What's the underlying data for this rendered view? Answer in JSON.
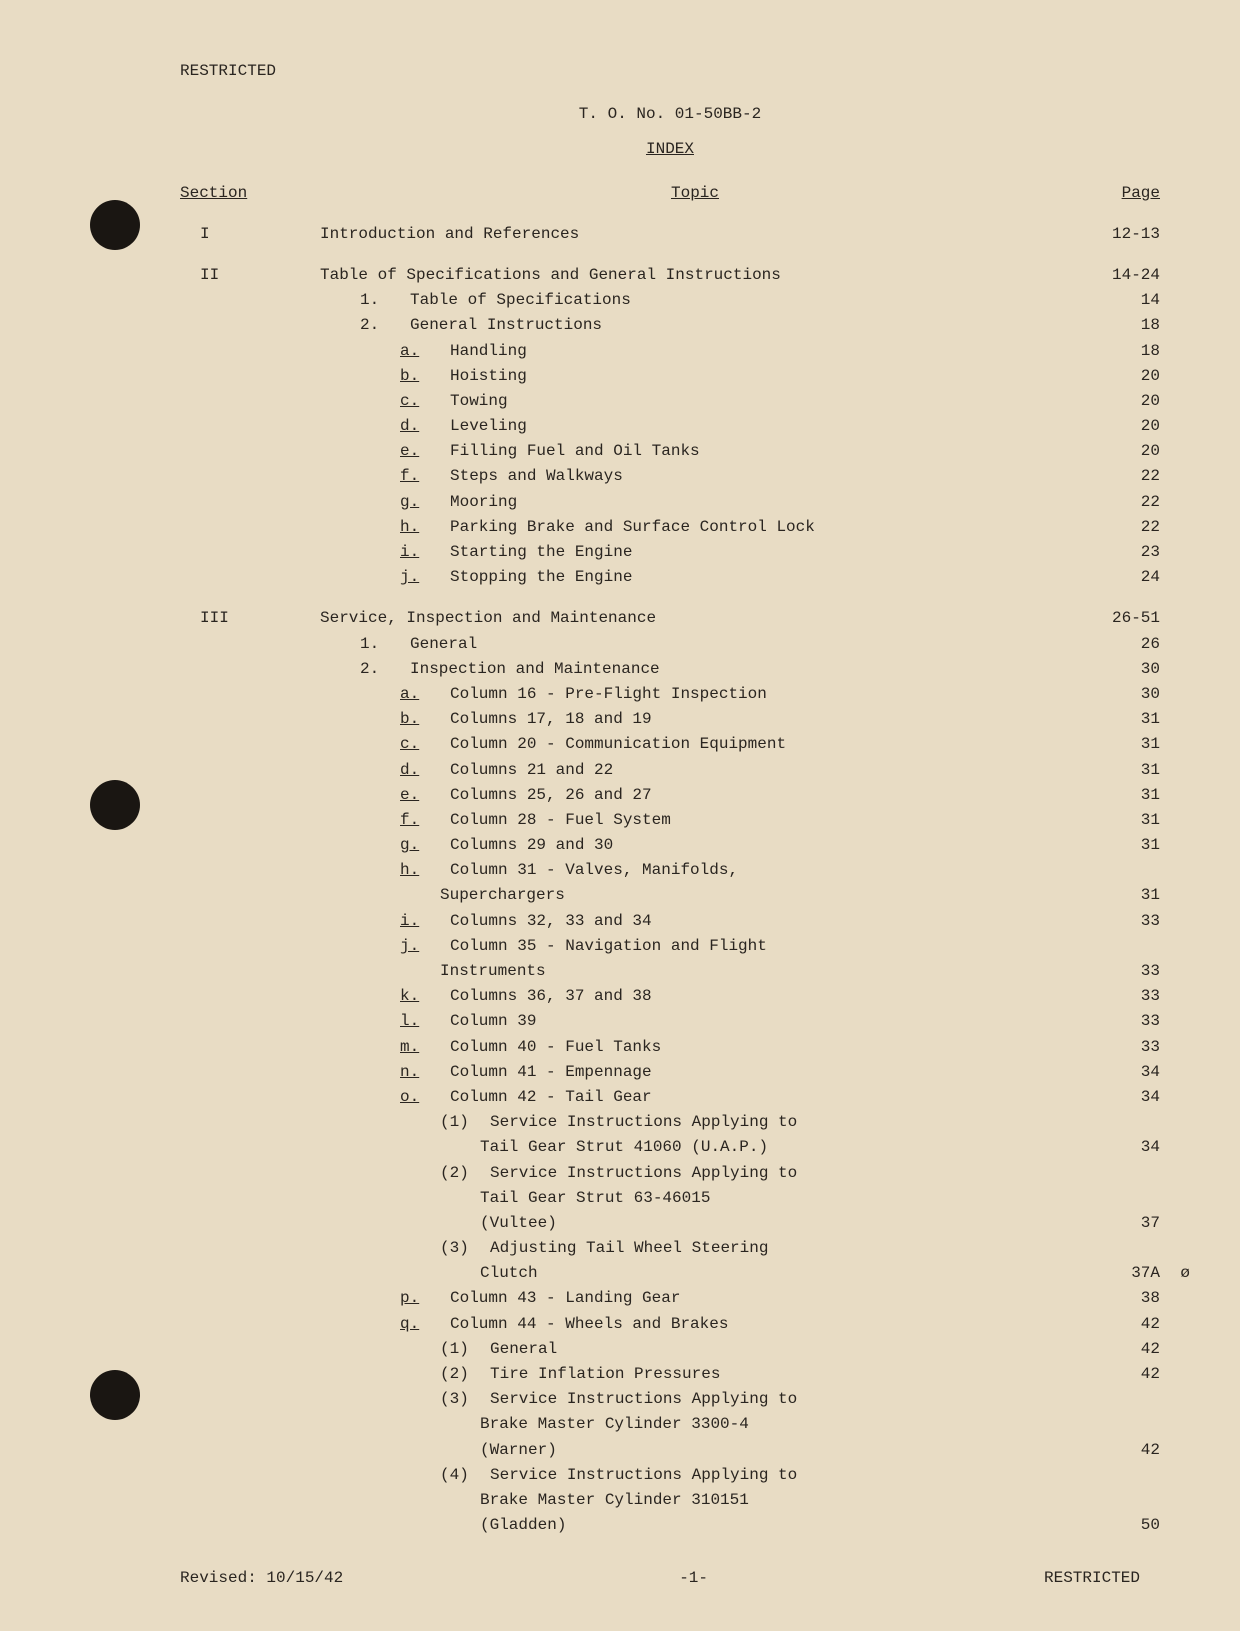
{
  "meta": {
    "background_color": "#e8dcc4",
    "text_color": "#2a2520",
    "font_family": "Courier New",
    "font_size": 16
  },
  "header": {
    "restricted": "RESTRICTED",
    "to_number": "T. O. No. 01-50BB-2",
    "index_title": "INDEX"
  },
  "columns": {
    "section": "Section",
    "topic": "Topic",
    "page": "Page"
  },
  "sections": [
    {
      "num": "I",
      "entries": [
        {
          "indent": 0,
          "label": "",
          "text": "Introduction and References",
          "page": "12-13"
        }
      ]
    },
    {
      "num": "II",
      "entries": [
        {
          "indent": 0,
          "label": "",
          "text": "Table of Specifications and General Instructions",
          "page": "14-24"
        },
        {
          "indent": 1,
          "label": "1.",
          "text": "Table of Specifications",
          "page": "14"
        },
        {
          "indent": 1,
          "label": "2.",
          "text": "General Instructions",
          "page": "18"
        },
        {
          "indent": 2,
          "label": "a.",
          "underline": true,
          "text": "Handling",
          "page": "18"
        },
        {
          "indent": 2,
          "label": "b.",
          "underline": true,
          "text": "Hoisting",
          "page": "20"
        },
        {
          "indent": 2,
          "label": "c.",
          "underline": true,
          "text": "Towing",
          "page": "20"
        },
        {
          "indent": 2,
          "label": "d.",
          "underline": true,
          "text": "Leveling",
          "page": "20"
        },
        {
          "indent": 2,
          "label": "e.",
          "underline": true,
          "text": "Filling Fuel and Oil Tanks",
          "page": "20"
        },
        {
          "indent": 2,
          "label": "f.",
          "underline": true,
          "text": "Steps and Walkways",
          "page": "22"
        },
        {
          "indent": 2,
          "label": "g.",
          "underline": true,
          "text": "Mooring",
          "page": "22"
        },
        {
          "indent": 2,
          "label": "h.",
          "underline": true,
          "text": "Parking Brake and Surface Control Lock",
          "page": "22"
        },
        {
          "indent": 2,
          "label": "i.",
          "underline": true,
          "text": "Starting the Engine",
          "page": "23"
        },
        {
          "indent": 2,
          "label": "j.",
          "underline": true,
          "text": "Stopping the Engine",
          "page": "24"
        }
      ]
    },
    {
      "num": "III",
      "entries": [
        {
          "indent": 0,
          "label": "",
          "text": "Service, Inspection and Maintenance",
          "page": "26-51"
        },
        {
          "indent": 1,
          "label": "1.",
          "text": "General",
          "page": "26"
        },
        {
          "indent": 1,
          "label": "2.",
          "text": "Inspection and Maintenance",
          "page": "30"
        },
        {
          "indent": 2,
          "label": "a.",
          "underline": true,
          "text": "Column 16 - Pre-Flight Inspection",
          "page": "30"
        },
        {
          "indent": 2,
          "label": "b.",
          "underline": true,
          "text": "Columns 17, 18 and 19",
          "page": "31"
        },
        {
          "indent": 2,
          "label": "c.",
          "underline": true,
          "text": "Column 20 - Communication Equipment",
          "page": "31"
        },
        {
          "indent": 2,
          "label": "d.",
          "underline": true,
          "text": "Columns 21 and 22",
          "page": "31"
        },
        {
          "indent": 2,
          "label": "e.",
          "underline": true,
          "text": "Columns 25, 26 and 27",
          "page": "31"
        },
        {
          "indent": 2,
          "label": "f.",
          "underline": true,
          "text": "Column 28 - Fuel System",
          "page": "31"
        },
        {
          "indent": 2,
          "label": "g.",
          "underline": true,
          "text": "Columns 29 and 30",
          "page": "31"
        },
        {
          "indent": 2,
          "label": "h.",
          "underline": true,
          "text": "Column 31 - Valves, Manifolds,",
          "page": ""
        },
        {
          "indent": 3,
          "label": "",
          "text": "Superchargers",
          "page": "31"
        },
        {
          "indent": 2,
          "label": "i.",
          "underline": true,
          "text": "Columns 32, 33 and 34",
          "page": "33"
        },
        {
          "indent": 2,
          "label": "j.",
          "underline": true,
          "text": "Column 35 - Navigation and Flight",
          "page": ""
        },
        {
          "indent": 3,
          "label": "",
          "text": "Instruments",
          "page": "33"
        },
        {
          "indent": 2,
          "label": "k.",
          "underline": true,
          "text": "Columns 36, 37 and 38",
          "page": "33"
        },
        {
          "indent": 2,
          "label": "l.",
          "underline": true,
          "text": "Column 39",
          "page": "33"
        },
        {
          "indent": 2,
          "label": "m.",
          "underline": true,
          "text": "Column 40 - Fuel Tanks",
          "page": "33"
        },
        {
          "indent": 2,
          "label": "n.",
          "underline": true,
          "text": "Column 41 - Empennage",
          "page": "34"
        },
        {
          "indent": 2,
          "label": "o.",
          "underline": true,
          "text": "Column 42 - Tail Gear",
          "page": "34"
        },
        {
          "indent": 3,
          "label": "(1)",
          "text": "Service Instructions Applying to",
          "page": ""
        },
        {
          "indent": 4,
          "label": "",
          "text": "Tail Gear Strut 41060 (U.A.P.)",
          "page": "34"
        },
        {
          "indent": 3,
          "label": "(2)",
          "text": "Service Instructions Applying to",
          "page": ""
        },
        {
          "indent": 4,
          "label": "",
          "text": "Tail Gear Strut 63-46015",
          "page": ""
        },
        {
          "indent": 4,
          "label": "",
          "text": "(Vultee)",
          "page": "37"
        },
        {
          "indent": 3,
          "label": "(3)",
          "text": "Adjusting Tail Wheel Steering",
          "page": ""
        },
        {
          "indent": 4,
          "label": "",
          "text": "Clutch",
          "page": "37A",
          "annotation": "ø"
        },
        {
          "indent": 2,
          "label": "p.",
          "underline": true,
          "text": "Column 43 - Landing Gear",
          "page": "38"
        },
        {
          "indent": 2,
          "label": "q.",
          "underline": true,
          "text": "Column 44 - Wheels and Brakes",
          "page": "42"
        },
        {
          "indent": 3,
          "label": "(1)",
          "text": "General",
          "page": "42"
        },
        {
          "indent": 3,
          "label": "(2)",
          "text": "Tire Inflation Pressures",
          "page": "42"
        },
        {
          "indent": 3,
          "label": "(3)",
          "text": "Service Instructions Applying to",
          "page": ""
        },
        {
          "indent": 4,
          "label": "",
          "text": "Brake Master Cylinder 3300-4",
          "page": ""
        },
        {
          "indent": 4,
          "label": "",
          "text": "(Warner)",
          "page": "42"
        },
        {
          "indent": 3,
          "label": "(4)",
          "text": "Service Instructions Applying to",
          "page": ""
        },
        {
          "indent": 4,
          "label": "",
          "text": "Brake Master Cylinder 310151",
          "page": ""
        },
        {
          "indent": 4,
          "label": "",
          "text": "(Gladden)",
          "page": "50"
        }
      ]
    }
  ],
  "footer": {
    "revised": "Revised: 10/15/42",
    "page_marker": "-1-",
    "restricted": "RESTRICTED"
  }
}
